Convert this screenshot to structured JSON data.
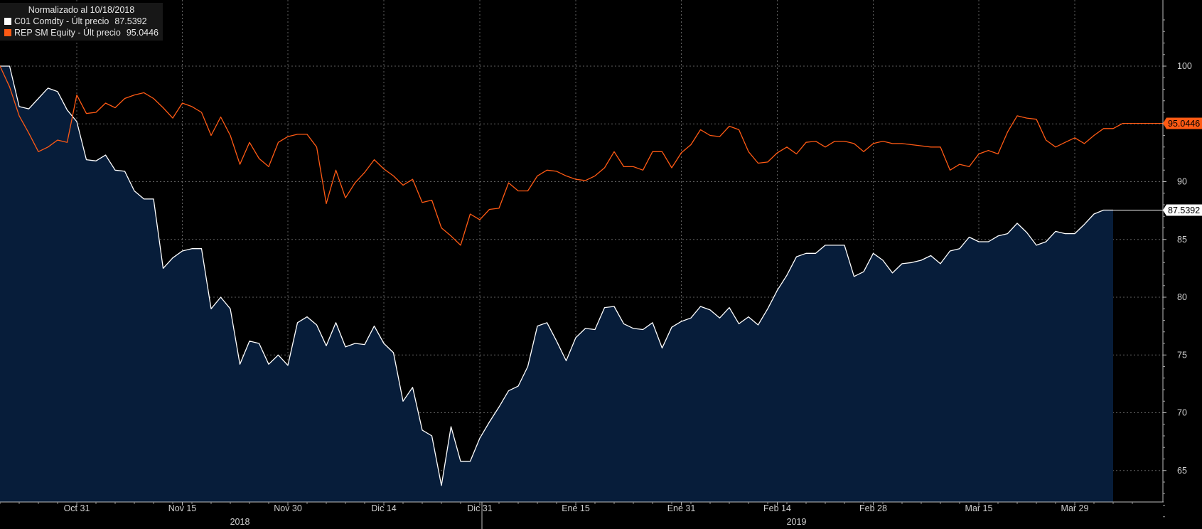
{
  "chart_data": {
    "type": "line",
    "title": "Normalizado al 10/18/2018",
    "legend_position": "top-left",
    "grid": true,
    "ylim": [
      60,
      104
    ],
    "y_ticks": [
      65,
      70,
      75,
      80,
      85,
      90,
      95,
      100
    ],
    "x_ticks": [
      {
        "label": "Oct 31",
        "i": 8
      },
      {
        "label": "Nov 15",
        "i": 19
      },
      {
        "label": "Nov 30",
        "i": 30
      },
      {
        "label": "Dic 14",
        "i": 40
      },
      {
        "label": "Dic 31",
        "i": 50
      },
      {
        "label": "Ene 15",
        "i": 60
      },
      {
        "label": "Ene 31",
        "i": 71
      },
      {
        "label": "Feb 14",
        "i": 81
      },
      {
        "label": "Feb 28",
        "i": 91
      },
      {
        "label": "Mar 15",
        "i": 102
      },
      {
        "label": "Mar 29",
        "i": 112
      }
    ],
    "years": [
      {
        "label": "2018",
        "i": 25
      },
      {
        "label": "2019",
        "i": 83
      }
    ],
    "year_divider_i": 50,
    "series": [
      {
        "name": "C01 Comdty - Últ precio",
        "last_label": "87.5392",
        "color": "#ffffff",
        "fill": "#071d3a",
        "values": [
          100.0,
          100.0,
          96.5,
          96.3,
          97.2,
          98.1,
          97.8,
          96.2,
          95.2,
          91.9,
          91.8,
          92.3,
          91.0,
          90.9,
          89.2,
          88.5,
          88.5,
          82.5,
          83.4,
          84.0,
          84.2,
          84.2,
          79.0,
          80.0,
          79.0,
          74.2,
          76.2,
          76.0,
          74.2,
          75.0,
          74.1,
          77.8,
          78.3,
          77.6,
          75.8,
          77.8,
          75.7,
          76.0,
          75.9,
          77.5,
          76.0,
          75.2,
          71.0,
          72.2,
          68.5,
          68.0,
          63.7,
          68.8,
          65.8,
          65.8,
          67.8,
          69.2,
          70.5,
          71.9,
          72.3,
          74.0,
          77.5,
          77.8,
          76.2,
          74.5,
          76.5,
          77.3,
          77.2,
          79.1,
          79.2,
          77.7,
          77.3,
          77.2,
          77.8,
          75.6,
          77.4,
          77.9,
          78.2,
          79.2,
          78.9,
          78.2,
          79.1,
          77.7,
          78.3,
          77.6,
          79.0,
          80.6,
          81.9,
          83.5,
          83.8,
          83.8,
          84.5,
          84.5,
          84.5,
          81.8,
          82.2,
          83.8,
          83.2,
          82.1,
          82.9,
          83.0,
          83.2,
          83.6,
          82.9,
          84.0,
          84.2,
          85.2,
          84.8,
          84.8,
          85.3,
          85.5,
          86.4,
          85.6,
          84.5,
          84.8,
          85.7,
          85.5,
          85.5,
          86.3,
          87.2,
          87.5392,
          87.5392
        ]
      },
      {
        "name": "REP SM Equity - Últ precio",
        "last_label": "95.0446",
        "color": "#ff5a14",
        "values": [
          100.0,
          98.2,
          95.7,
          94.2,
          92.6,
          93.0,
          93.6,
          93.4,
          97.5,
          95.9,
          96.0,
          96.8,
          96.4,
          97.2,
          97.5,
          97.7,
          97.2,
          96.4,
          95.5,
          96.8,
          96.5,
          96.0,
          94.0,
          95.6,
          94.0,
          91.5,
          93.4,
          92.0,
          91.3,
          93.4,
          93.9,
          94.1,
          94.1,
          93.0,
          88.1,
          91.0,
          88.6,
          89.9,
          90.8,
          91.9,
          91.1,
          90.5,
          89.7,
          90.2,
          88.2,
          88.4,
          86.0,
          85.3,
          84.5,
          87.2,
          86.7,
          87.6,
          87.7,
          89.9,
          89.2,
          89.2,
          90.5,
          91.0,
          90.9,
          90.5,
          90.2,
          90.1,
          90.5,
          91.2,
          92.6,
          91.3,
          91.3,
          91.0,
          92.6,
          92.6,
          91.2,
          92.5,
          93.2,
          94.5,
          94.0,
          93.9,
          94.8,
          94.5,
          92.6,
          91.6,
          91.7,
          92.5,
          93.0,
          92.4,
          93.4,
          93.5,
          93.0,
          93.5,
          93.5,
          93.3,
          92.6,
          93.3,
          93.5,
          93.3,
          93.3,
          93.2,
          93.1,
          93.0,
          93.0,
          91.0,
          91.5,
          91.3,
          92.4,
          92.7,
          92.4,
          94.3,
          95.7,
          95.5,
          95.4,
          93.6,
          93.0,
          93.4,
          93.8,
          93.3,
          94.0,
          94.6,
          94.6,
          95.0446
        ]
      }
    ]
  }
}
